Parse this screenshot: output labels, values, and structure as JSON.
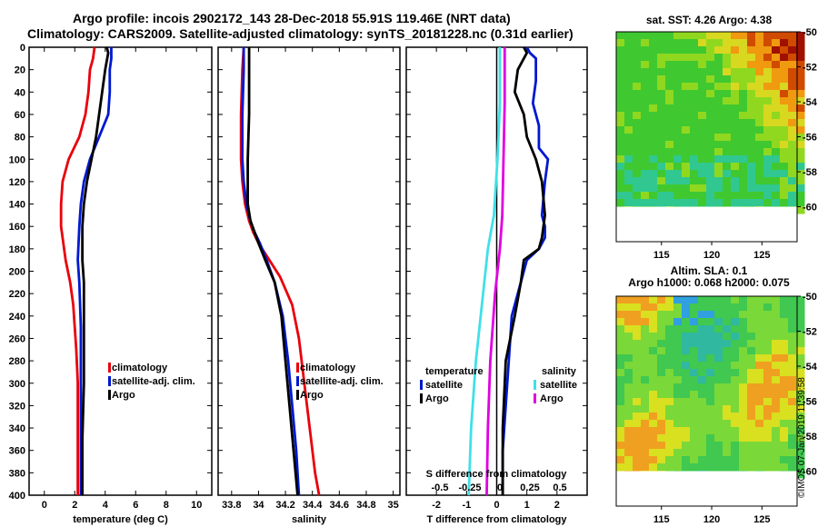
{
  "header": {
    "title_line1": "Argo profile: incois 2902172_143 28-Dec-2018 55.91S 119.46E (NRT data)",
    "title_line2": "Climatology: CARS2009. Satellite-adjusted climatology: synTS_20181228.nc (0.31d earlier)"
  },
  "colors": {
    "climatology": "#e8000b",
    "satellite": "#0018d0",
    "argo": "#000000",
    "sat_salinity": "#40e0e8",
    "argo_salinity": "#e000e0"
  },
  "chart_data": [
    {
      "type": "line",
      "id": "temperature",
      "xlabel": "temperature (deg C)",
      "ylabel": "",
      "xlim": [
        -1,
        11
      ],
      "ylim": [
        400,
        0
      ],
      "xticks": [
        "0",
        "2",
        "4",
        "6",
        "8",
        "10"
      ],
      "xtick_values": [
        0,
        2,
        4,
        6,
        8,
        10
      ],
      "yticks": [
        "0",
        "20",
        "40",
        "60",
        "80",
        "100",
        "120",
        "140",
        "160",
        "180",
        "200",
        "220",
        "240",
        "260",
        "280",
        "300",
        "320",
        "340",
        "360",
        "380",
        "400"
      ],
      "legend": [
        "climatology",
        "satellite-adj. clim.",
        "Argo"
      ],
      "series": [
        {
          "name": "climatology",
          "color": "#e8000b",
          "x": [
            3.3,
            3.2,
            3.0,
            2.9,
            2.7,
            2.3,
            1.6,
            1.2,
            1.1,
            1.1,
            1.2,
            1.4,
            1.7,
            1.9,
            2.0,
            2.1,
            2.2,
            2.2,
            2.2
          ],
          "y": [
            0,
            10,
            20,
            40,
            60,
            80,
            100,
            120,
            140,
            160,
            170,
            190,
            210,
            230,
            250,
            270,
            300,
            340,
            400
          ]
        },
        {
          "name": "satellite-adj. clim.",
          "color": "#0018d0",
          "x": [
            4.4,
            4.4,
            4.3,
            4.3,
            4.2,
            3.6,
            3.0,
            2.6,
            2.4,
            2.3,
            2.2,
            2.3,
            2.4,
            2.4,
            2.4,
            2.4
          ],
          "y": [
            0,
            10,
            20,
            40,
            60,
            80,
            100,
            120,
            140,
            160,
            190,
            210,
            250,
            300,
            350,
            400
          ]
        },
        {
          "name": "Argo",
          "color": "#000000",
          "x": [
            4.1,
            4.2,
            4.0,
            3.8,
            3.6,
            3.4,
            3.1,
            2.8,
            2.6,
            2.5,
            2.5,
            2.6,
            2.6,
            2.6,
            2.5,
            2.5
          ],
          "y": [
            0,
            5,
            20,
            40,
            60,
            80,
            100,
            120,
            140,
            160,
            190,
            210,
            250,
            300,
            350,
            400
          ]
        }
      ]
    },
    {
      "type": "line",
      "id": "salinity",
      "xlabel": "salinity",
      "ylabel": "",
      "xlim": [
        33.7,
        35.05
      ],
      "ylim": [
        400,
        0
      ],
      "xticks": [
        "33.8",
        "34",
        "34.2",
        "34.4",
        "34.6",
        "34.8",
        "35"
      ],
      "xtick_values": [
        33.8,
        34.0,
        34.2,
        34.4,
        34.6,
        34.8,
        35.0
      ],
      "legend": [
        "climatology",
        "satellite-adj. clim.",
        "Argo"
      ],
      "series": [
        {
          "name": "climatology",
          "color": "#e8000b",
          "x": [
            33.89,
            33.88,
            33.87,
            33.87,
            33.88,
            33.9,
            33.93,
            33.96,
            34.0,
            34.08,
            34.16,
            34.25,
            34.3,
            34.34,
            34.38,
            34.42,
            34.45
          ],
          "y": [
            0,
            20,
            60,
            100,
            120,
            140,
            155,
            165,
            175,
            190,
            205,
            230,
            260,
            300,
            340,
            380,
            400
          ]
        },
        {
          "name": "satellite-adj. clim.",
          "color": "#0018d0",
          "x": [
            33.89,
            33.89,
            33.88,
            33.88,
            33.89,
            33.91,
            33.94,
            33.97,
            34.01,
            34.06,
            34.12,
            34.18,
            34.22,
            34.25,
            34.28,
            34.3
          ],
          "y": [
            0,
            20,
            60,
            100,
            120,
            140,
            155,
            165,
            175,
            190,
            210,
            240,
            280,
            320,
            360,
            400
          ]
        },
        {
          "name": "Argo",
          "color": "#000000",
          "x": [
            33.93,
            33.93,
            33.93,
            33.92,
            33.92,
            33.92,
            33.94,
            33.97,
            34.0,
            34.05,
            34.12,
            34.17,
            34.2,
            34.23,
            34.26,
            34.29
          ],
          "y": [
            0,
            20,
            60,
            100,
            120,
            140,
            155,
            165,
            175,
            190,
            210,
            240,
            280,
            320,
            360,
            400
          ]
        }
      ]
    },
    {
      "type": "line",
      "id": "difference",
      "xlabel": "T difference from climatology",
      "ylabel": "",
      "xlim": [
        -3,
        3
      ],
      "ylim": [
        400,
        0
      ],
      "xticks": [
        "-2",
        "-1",
        "0",
        "1",
        "2"
      ],
      "xtick_values": [
        -2,
        -1,
        0,
        1,
        2
      ],
      "s_title": "S difference from climatology",
      "s_xticks": [
        "-0.5",
        "-0.25",
        "0",
        "0.25",
        "0.5"
      ],
      "s_xtick_values": [
        -0.5,
        -0.25,
        0,
        0.25,
        0.5
      ],
      "legend_temperature_title": "temperature",
      "legend_salinity_title": "salinity",
      "legend_temperature": [
        "satellite",
        "Argo"
      ],
      "legend_salinity": [
        "satellite",
        "Argo"
      ],
      "series": [
        {
          "name": "T satellite",
          "color": "#0018d0",
          "x": [
            1.0,
            1.1,
            1.3,
            1.3,
            1.2,
            1.4,
            1.4,
            1.7,
            1.6,
            1.5,
            1.6,
            1.6,
            1.4,
            1.0,
            0.9,
            0.7,
            0.5,
            0.4,
            0.3,
            0.2,
            0.2
          ],
          "y": [
            0,
            5,
            10,
            30,
            50,
            70,
            90,
            100,
            120,
            150,
            160,
            170,
            180,
            190,
            200,
            220,
            240,
            280,
            320,
            360,
            400
          ]
        },
        {
          "name": "T Argo",
          "color": "#000000",
          "x": [
            0.9,
            1.0,
            0.7,
            0.6,
            0.9,
            1.0,
            1.3,
            1.5,
            1.6,
            1.5,
            1.4,
            0.9,
            0.8,
            0.6,
            0.3,
            0.2,
            0.2
          ],
          "y": [
            0,
            5,
            20,
            40,
            60,
            80,
            100,
            120,
            150,
            170,
            180,
            190,
            210,
            240,
            280,
            340,
            400
          ]
        },
        {
          "name": "S satellite",
          "color": "#40e0e8",
          "x": [
            0.0,
            0.0,
            -0.02,
            -0.05,
            -0.1,
            -0.14,
            -0.2,
            -0.24,
            -0.26
          ],
          "y": [
            0,
            50,
            100,
            150,
            180,
            220,
            280,
            340,
            400
          ]
        },
        {
          "name": "S Argo",
          "color": "#e000e0",
          "x": [
            0.04,
            0.04,
            0.03,
            0.02,
            0.0,
            -0.04,
            -0.08,
            -0.1,
            -0.11
          ],
          "y": [
            0,
            50,
            100,
            150,
            180,
            220,
            280,
            340,
            400
          ]
        }
      ]
    },
    {
      "type": "heatmap",
      "id": "sst_map",
      "title": "sat. SST: 4.26 Argo: 4.38",
      "xticks": [
        "115",
        "120",
        "125"
      ],
      "xtick_values": [
        115,
        120,
        125
      ],
      "xlim": [
        110.5,
        128.5
      ],
      "yticks": [
        "-50",
        "-52",
        "-54",
        "-56",
        "-58",
        "-60"
      ],
      "ytick_values": [
        -50,
        -52,
        -54,
        -56,
        -58,
        -60
      ],
      "ylim": [
        -62,
        -50
      ]
    },
    {
      "type": "heatmap",
      "id": "sla_map",
      "title": "Altim. SLA: 0.1",
      "subtitle": "Argo h1000: 0.068 h2000: 0.075",
      "xticks": [
        "115",
        "120",
        "125"
      ],
      "xtick_values": [
        115,
        120,
        125
      ],
      "xlim": [
        110.5,
        128.5
      ],
      "yticks": [
        "-50",
        "-52",
        "-54",
        "-56",
        "-58",
        "-60"
      ],
      "ytick_values": [
        -50,
        -52,
        -54,
        -56,
        -58,
        -60
      ],
      "ylim": [
        -62,
        -50
      ]
    }
  ],
  "footer": {
    "credit": "©IMOS 07-Jan-2019 11:39:58"
  }
}
